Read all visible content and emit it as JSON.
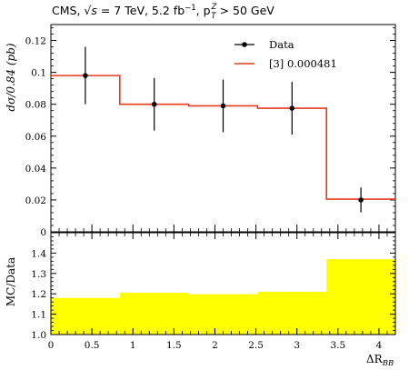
{
  "header": {
    "title_prefix": "CMS, ",
    "title_sqrt": "√s",
    "title_mid": " = 7 TeV, 5.2 fb",
    "title_exp": "−1",
    "title_pt": ", p",
    "title_pt_sup": "Z",
    "title_pt_sub": "T",
    "title_suffix": " > 50 GeV"
  },
  "chart_data": [
    {
      "type": "step-histogram",
      "ylabel": "dσ/0.84 (pb)",
      "xlim": [
        0,
        4.2
      ],
      "ylim": [
        0,
        0.13
      ],
      "yticks": [
        0,
        0.02,
        0.04,
        0.06,
        0.08,
        0.1,
        0.12
      ],
      "ytick_labels": [
        "0",
        "0.02",
        "0.04",
        "0.06",
        "0.08",
        "0.1",
        "0.12"
      ],
      "bin_edges": [
        0,
        0.84,
        1.68,
        2.52,
        3.36,
        4.2
      ],
      "series": [
        {
          "name": "Data",
          "style": "points-with-errorbars",
          "color": "#000000",
          "x": [
            0.42,
            1.26,
            2.1,
            2.94,
            3.78
          ],
          "y": [
            0.098,
            0.08,
            0.079,
            0.0775,
            0.02
          ],
          "yerr": [
            0.018,
            0.0165,
            0.0165,
            0.0165,
            0.0078
          ]
        },
        {
          "name": "[3] 0.000481",
          "style": "step",
          "color": "#e8391b",
          "values": [
            0.098,
            0.08,
            0.079,
            0.0775,
            0.0205
          ]
        }
      ],
      "legend": "top-right",
      "grid": false
    },
    {
      "type": "ratio-band",
      "ylabel": "MC/Data",
      "xlabel": "ΔR_BB",
      "xlim": [
        0,
        4.2
      ],
      "ylim": [
        1.0,
        1.5
      ],
      "yticks": [
        1.0,
        1.1,
        1.2,
        1.3,
        1.4
      ],
      "ytick_labels": [
        "1.0",
        "1.1",
        "1.2",
        "1.3",
        "1.4"
      ],
      "xticks": [
        0,
        0.5,
        1,
        1.5,
        2,
        2.5,
        3,
        3.5,
        4
      ],
      "xtick_labels": [
        "0",
        "0.5",
        "1",
        "1.5",
        "2",
        "2.5",
        "3",
        "3.5",
        "4"
      ],
      "bin_edges": [
        0,
        0.84,
        1.68,
        2.52,
        3.36,
        4.2
      ],
      "band_color": "#ffff00",
      "values": [
        1.18,
        1.205,
        1.198,
        1.21,
        1.37
      ]
    }
  ],
  "legend": {
    "data_label": "Data",
    "model_label": "[3] 0.000481"
  },
  "axes": {
    "ylabel_top": "dσ/0.84 (pb)",
    "ylabel_bottom": "MC/Data",
    "xlabel_main": "ΔR",
    "xlabel_sub": "BB"
  }
}
